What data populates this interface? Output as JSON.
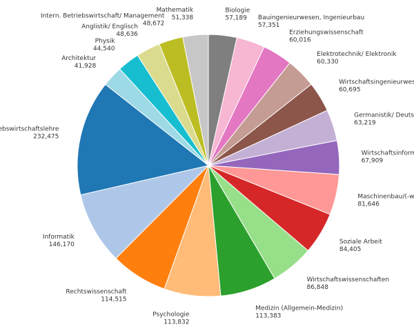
{
  "chart_data": {
    "type": "pie",
    "start_angle_deg": 90,
    "direction": "clockwise",
    "categories": [
      "Biologie",
      "Bauingenieurwesen, Ingenieurbau",
      "Erziehungswissenschaft",
      "Elektrotechnik/ Elektronik",
      "Wirtschaftsingenieurwesen",
      "Germanistik/ Deutsch",
      "Wirtschaftsinformatik",
      "Maschinenbau/(-wesen)",
      "Soziale Arbeit",
      "Wirtschaftswissenschaften",
      "Medizin (Allgemein-Medizin)",
      "Psychologie",
      "Rechtswissenschaft",
      "Informatik",
      "Betriebswirtschaftslehre",
      "Architektur",
      "Physik",
      "Anglistik/ Englisch",
      "Intern. Betriebswirtschaft/ Management",
      "Mathematik"
    ],
    "values": [
      57189,
      57351,
      60016,
      60330,
      60695,
      63219,
      67909,
      81646,
      84405,
      86848,
      113383,
      113832,
      114515,
      146170,
      232475,
      41928,
      44540,
      48636,
      48672,
      51338
    ],
    "value_labels": [
      "57,189",
      "57,351",
      "60,016",
      "60,330",
      "60,695",
      "63,219",
      "67,909",
      "81,646",
      "84,405",
      "86,848",
      "113,383",
      "113,832",
      "114,515",
      "146,170",
      "232,475",
      "41,928",
      "44,540",
      "48,636",
      "48,672",
      "51,338"
    ],
    "colors": [
      "#7f7f7f",
      "#f7b6d2",
      "#e377c2",
      "#c49c94",
      "#8c564b",
      "#c5b0d5",
      "#9467bd",
      "#ff9896",
      "#d62728",
      "#98df8a",
      "#2ca02c",
      "#ffbb78",
      "#ff7f0e",
      "#aec7e8",
      "#1f77b4",
      "#9edae5",
      "#17becf",
      "#dbdb8d",
      "#bcbd22",
      "#c7c7c7"
    ],
    "edge_color": "#ffffff",
    "legend": "none"
  }
}
